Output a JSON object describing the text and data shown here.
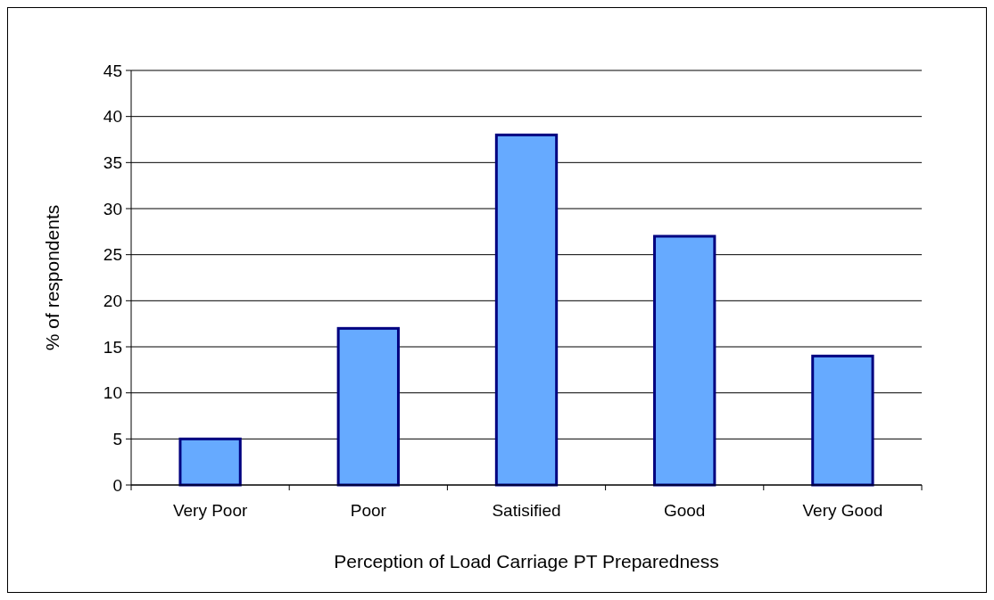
{
  "chart_data": {
    "type": "bar",
    "xlabel": "Perception of Load Carriage PT Preparedness",
    "ylabel": "% of respondents",
    "categories": [
      "Very Poor",
      "Poor",
      "Satisified",
      "Good",
      "Very Good"
    ],
    "values": [
      5,
      17,
      38,
      27,
      14
    ],
    "color": "#66aaff",
    "ylim": [
      0,
      45
    ],
    "yticks": [
      0,
      5,
      10,
      15,
      20,
      25,
      30,
      35,
      40,
      45
    ],
    "grid": "y"
  }
}
